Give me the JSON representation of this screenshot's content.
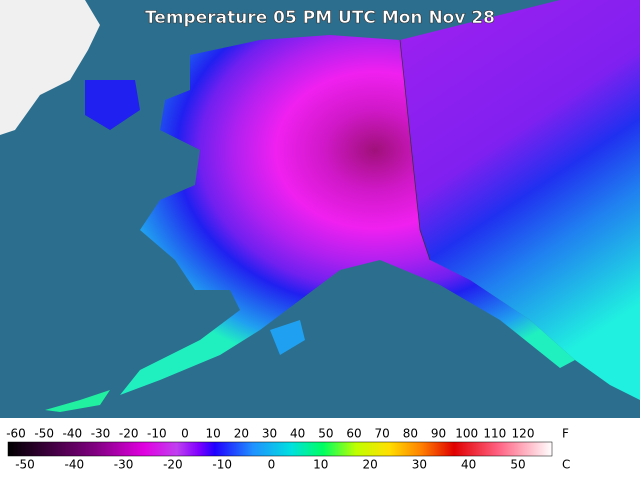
{
  "title": "Temperature 05 PM UTC Mon Nov 28",
  "legend": {
    "fahrenheit": {
      "unit": "F",
      "labels": [
        -60,
        -50,
        -40,
        -30,
        -20,
        -10,
        0,
        10,
        20,
        30,
        40,
        50,
        60,
        70,
        80,
        90,
        100,
        110,
        120
      ]
    },
    "celsius": {
      "unit": "C",
      "labels": [
        -50,
        -40,
        -30,
        -20,
        -10,
        0,
        10,
        20,
        30,
        40,
        50
      ]
    }
  }
}
